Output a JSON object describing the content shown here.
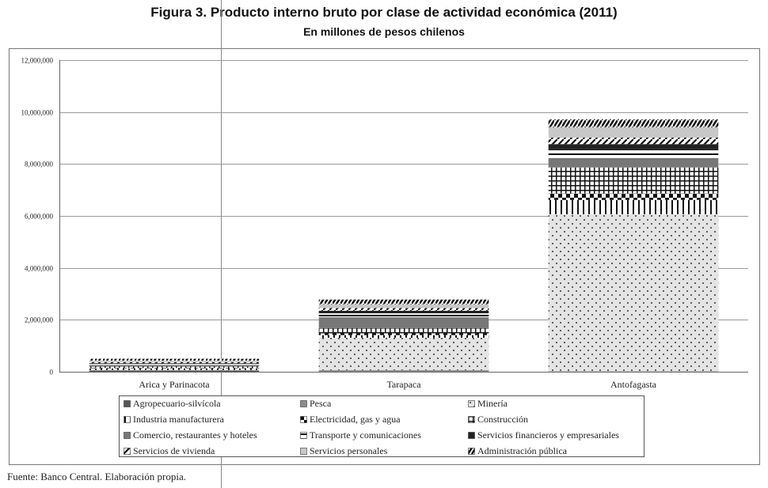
{
  "header": {
    "title": "Figura 3. Producto interno bruto por clase de actividad económica (2011)",
    "subtitle": "En millones de pesos chilenos"
  },
  "footer": {
    "source": "Fuente: Banco Central. Elaboración propia."
  },
  "chart_data": {
    "type": "bar",
    "stacked": true,
    "title": "Figura 3. Producto interno bruto por clase de actividad económica (2011)",
    "subtitle": "En millones de pesos chilenos",
    "xlabel": "",
    "ylabel": "",
    "ylim": [
      0,
      12000000
    ],
    "yticks": [
      0,
      2000000,
      4000000,
      6000000,
      8000000,
      10000000,
      12000000
    ],
    "ytick_labels": [
      "0",
      "2,000,000",
      "4,000,000",
      "6,000,000",
      "8,000,000",
      "10,000,000",
      "12,000,000"
    ],
    "categories": [
      "Arica y Parinacota",
      "Tarapaca",
      "Antofagasta"
    ],
    "legend_position": "bottom",
    "series": [
      {
        "name": "Agropecuario-silvícola",
        "values": [
          40000,
          10000,
          5000
        ],
        "pattern": "solid-dark"
      },
      {
        "name": "Pesca",
        "values": [
          20000,
          50000,
          10000
        ],
        "pattern": "solid-mid"
      },
      {
        "name": "Minería",
        "values": [
          10000,
          1250000,
          6050000
        ],
        "pattern": "dots"
      },
      {
        "name": "Industria manufacturera",
        "values": [
          60000,
          100000,
          550000
        ],
        "pattern": "vlines"
      },
      {
        "name": "Electricidad, gas y agua",
        "values": [
          20000,
          70000,
          250000
        ],
        "pattern": "checks"
      },
      {
        "name": "Construcción",
        "values": [
          60000,
          200000,
          1000000
        ],
        "pattern": "grid"
      },
      {
        "name": "Comercio, restaurantes y hoteles",
        "values": [
          50000,
          420000,
          350000
        ],
        "pattern": "solid-gray"
      },
      {
        "name": "Transporte y comunicaciones",
        "values": [
          40000,
          150000,
          350000
        ],
        "pattern": "hlines"
      },
      {
        "name": "Servicios financieros y empresariales",
        "values": [
          30000,
          100000,
          200000
        ],
        "pattern": "solid-black"
      },
      {
        "name": "Servicios de vivienda",
        "values": [
          40000,
          100000,
          250000
        ],
        "pattern": "diag"
      },
      {
        "name": "Servicios personales",
        "values": [
          60000,
          150000,
          400000
        ],
        "pattern": "solid-light"
      },
      {
        "name": "Administración pública",
        "values": [
          70000,
          180000,
          300000
        ],
        "pattern": "zigzag"
      }
    ]
  }
}
